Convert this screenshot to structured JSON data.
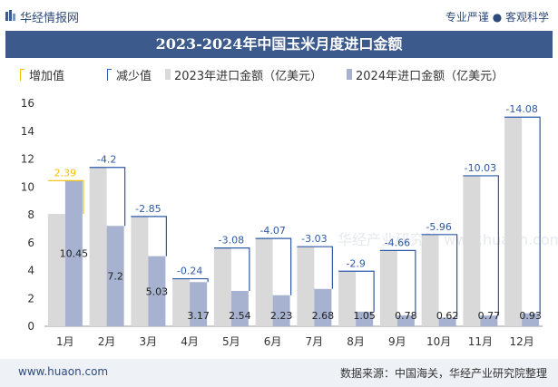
{
  "header": {
    "brand": "华经情报网",
    "tagline": "专业严谨 ● 客观科学"
  },
  "title": "2023-2024年中国玉米月度进口金额",
  "legend": {
    "increase": "增加值",
    "decrease": "减少值",
    "series2023": "2023年进口金额（亿美元）",
    "series2024": "2024年进口金额（亿美元）"
  },
  "watermark": "华经产业研究院 www.huaon.com",
  "colors": {
    "bar2023": "#d9d9d9",
    "bar2024": "#a6b2cf",
    "increase": "#f5c000",
    "decrease": "#2e5aa7",
    "titlebar": "#3d5a8c"
  },
  "chart_data": {
    "type": "bar",
    "categories": [
      "1月",
      "2月",
      "3月",
      "4月",
      "5月",
      "6月",
      "7月",
      "8月",
      "9月",
      "10月",
      "11月",
      "12月"
    ],
    "series": [
      {
        "name": "2023年进口金额（亿美元）",
        "values": [
          8.06,
          11.4,
          7.88,
          3.41,
          5.62,
          6.3,
          5.71,
          3.95,
          5.44,
          6.58,
          10.8,
          15.01
        ]
      },
      {
        "name": "2024年进口金额（亿美元）",
        "values": [
          10.45,
          7.2,
          5.03,
          3.17,
          2.54,
          2.23,
          2.68,
          1.05,
          0.78,
          0.62,
          0.77,
          0.93
        ]
      }
    ],
    "changes": [
      2.39,
      -4.2,
      -2.85,
      -0.24,
      -3.08,
      -4.07,
      -3.03,
      -2.9,
      -4.66,
      -5.96,
      -10.03,
      -14.08
    ],
    "ylim": [
      0,
      16
    ],
    "yticks": [
      0,
      2,
      4,
      6,
      8,
      10,
      12,
      14,
      16
    ]
  },
  "footer": {
    "site": "www.huaon.com",
    "source": "数据来源：中国海关，华经产业研究院整理"
  }
}
